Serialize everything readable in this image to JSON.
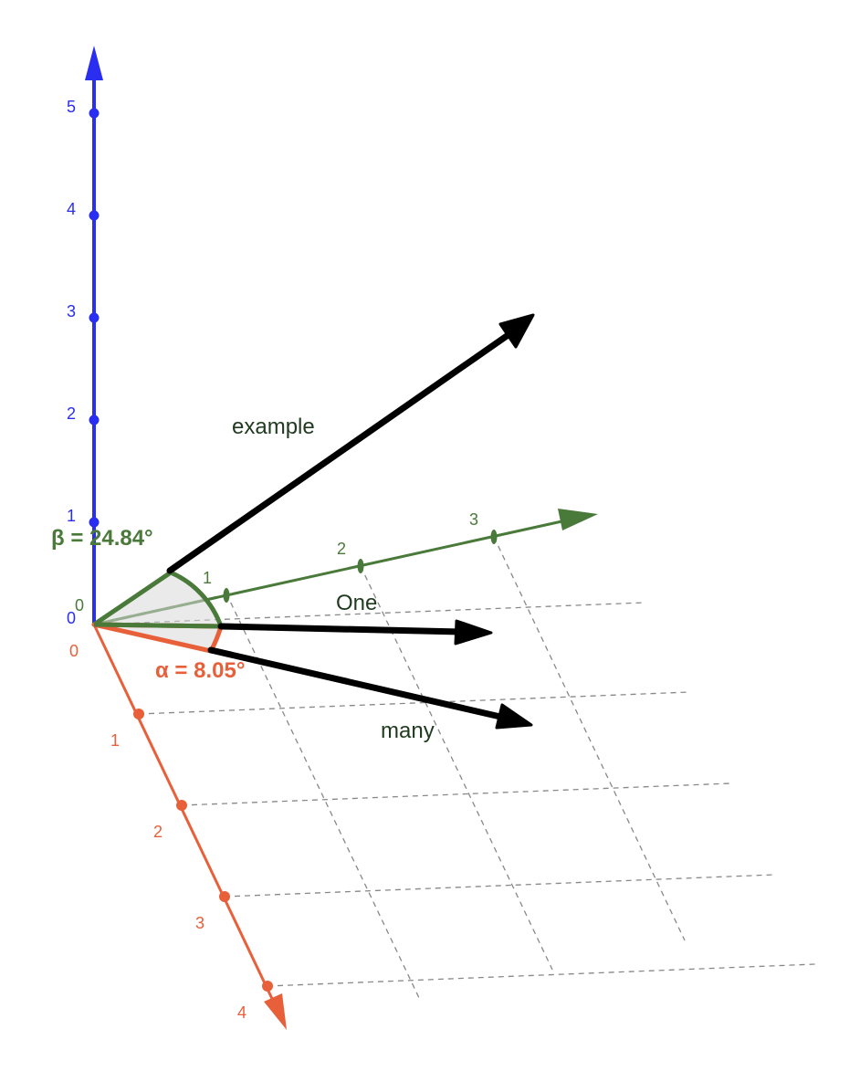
{
  "colors": {
    "blue_axis": "#2a2ef0",
    "orange_axis": "#e8603a",
    "green_axis": "#4a7a3a",
    "vector": "#000000",
    "grid": "#888888",
    "word_text": "#1f3a1f"
  },
  "axes": {
    "blue": {
      "ticks": [
        "0",
        "1",
        "2",
        "3",
        "4",
        "5"
      ]
    },
    "green": {
      "ticks": [
        "0",
        "1",
        "2",
        "3"
      ]
    },
    "orange": {
      "ticks": [
        "0",
        "1",
        "2",
        "3",
        "4"
      ]
    }
  },
  "vectors": [
    {
      "label": "example"
    },
    {
      "label": "One"
    },
    {
      "label": "many"
    }
  ],
  "angles": {
    "beta": {
      "text": "β = 24.84°"
    },
    "alpha": {
      "text": "α = 8.05°"
    }
  }
}
